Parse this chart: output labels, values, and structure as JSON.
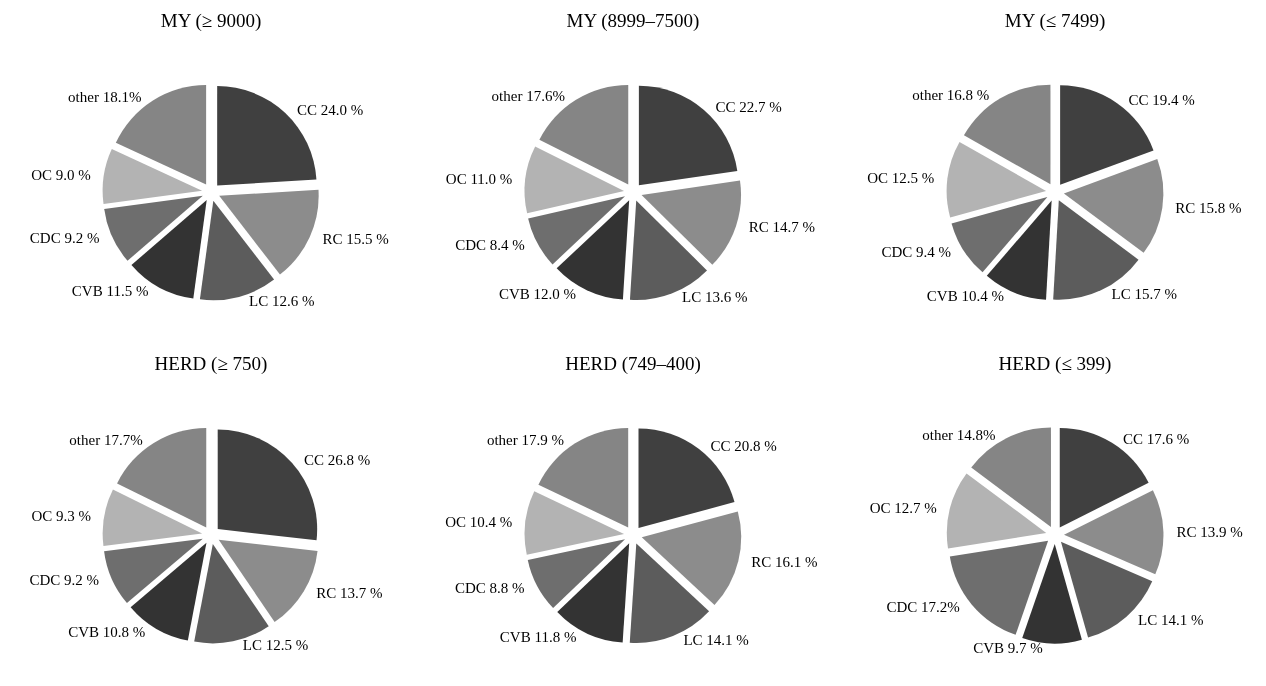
{
  "chart_data": [
    {
      "type": "pie",
      "title": "MY (≥ 9000)",
      "categories": [
        "CC",
        "RC",
        "LC",
        "CVB",
        "CDC",
        "OC",
        "other"
      ],
      "values": [
        24.0,
        15.5,
        12.6,
        11.5,
        9.2,
        9.0,
        18.1
      ],
      "value_labels": [
        "24.0 %",
        "15.5 %",
        "12.6 %",
        "11.5 %",
        "9.2 %",
        "9.0 %",
        "18.1%"
      ],
      "colors": [
        "#404040",
        "#8c8c8c",
        "#5c5c5c",
        "#333333",
        "#6e6e6e",
        "#b3b3b3",
        "#858585"
      ],
      "legend": false
    },
    {
      "type": "pie",
      "title": "MY (8999–7500)",
      "categories": [
        "CC",
        "RC",
        "LC",
        "CVB",
        "CDC",
        "OC",
        "other"
      ],
      "values": [
        22.7,
        14.7,
        13.6,
        12.0,
        8.4,
        11.0,
        17.6
      ],
      "value_labels": [
        "22.7 %",
        "14.7 %",
        "13.6 %",
        "12.0 %",
        "8.4 %",
        "11.0 %",
        "17.6%"
      ],
      "colors": [
        "#404040",
        "#8c8c8c",
        "#5c5c5c",
        "#333333",
        "#6e6e6e",
        "#b3b3b3",
        "#858585"
      ],
      "legend": false
    },
    {
      "type": "pie",
      "title": "MY (≤ 7499)",
      "categories": [
        "CC",
        "RC",
        "LC",
        "CVB",
        "CDC",
        "OC",
        "other"
      ],
      "values": [
        19.4,
        15.8,
        15.7,
        10.4,
        9.4,
        12.5,
        16.8
      ],
      "value_labels": [
        "19.4 %",
        "15.8 %",
        "15.7 %",
        "10.4 %",
        "9.4 %",
        "12.5 %",
        "16.8 %"
      ],
      "colors": [
        "#404040",
        "#8c8c8c",
        "#5c5c5c",
        "#333333",
        "#6e6e6e",
        "#b3b3b3",
        "#858585"
      ],
      "legend": false
    },
    {
      "type": "pie",
      "title": "HERD (≥ 750)",
      "categories": [
        "CC",
        "RC",
        "LC",
        "CVB",
        "CDC",
        "OC",
        "other"
      ],
      "values": [
        26.8,
        13.7,
        12.5,
        10.8,
        9.2,
        9.3,
        17.7
      ],
      "value_labels": [
        "26.8 %",
        "13.7 %",
        "12.5 %",
        "10.8 %",
        "9.2 %",
        "9.3 %",
        "17.7%"
      ],
      "colors": [
        "#404040",
        "#8c8c8c",
        "#5c5c5c",
        "#333333",
        "#6e6e6e",
        "#b3b3b3",
        "#858585"
      ],
      "legend": false
    },
    {
      "type": "pie",
      "title": "HERD (749–400)",
      "categories": [
        "CC",
        "RC",
        "LC",
        "CVB",
        "CDC",
        "OC",
        "other"
      ],
      "values": [
        20.8,
        16.1,
        14.1,
        11.8,
        8.8,
        10.4,
        17.9
      ],
      "value_labels": [
        "20.8 %",
        "16.1 %",
        "14.1 %",
        "11.8 %",
        "8.8 %",
        "10.4 %",
        "17.9 %"
      ],
      "colors": [
        "#404040",
        "#8c8c8c",
        "#5c5c5c",
        "#333333",
        "#6e6e6e",
        "#b3b3b3",
        "#858585"
      ],
      "legend": false
    },
    {
      "type": "pie",
      "title": "HERD (≤ 399)",
      "categories": [
        "CC",
        "RC",
        "LC",
        "CVB",
        "CDC",
        "OC",
        "other"
      ],
      "values": [
        17.6,
        13.9,
        14.1,
        9.7,
        17.2,
        12.7,
        14.8
      ],
      "value_labels": [
        "17.6 %",
        "13.9 %",
        "14.1 %",
        "9.7 %",
        "17.2%",
        "12.7 %",
        "14.8%"
      ],
      "colors": [
        "#404040",
        "#8c8c8c",
        "#5c5c5c",
        "#333333",
        "#6e6e6e",
        "#b3b3b3",
        "#858585"
      ],
      "legend": false
    }
  ]
}
